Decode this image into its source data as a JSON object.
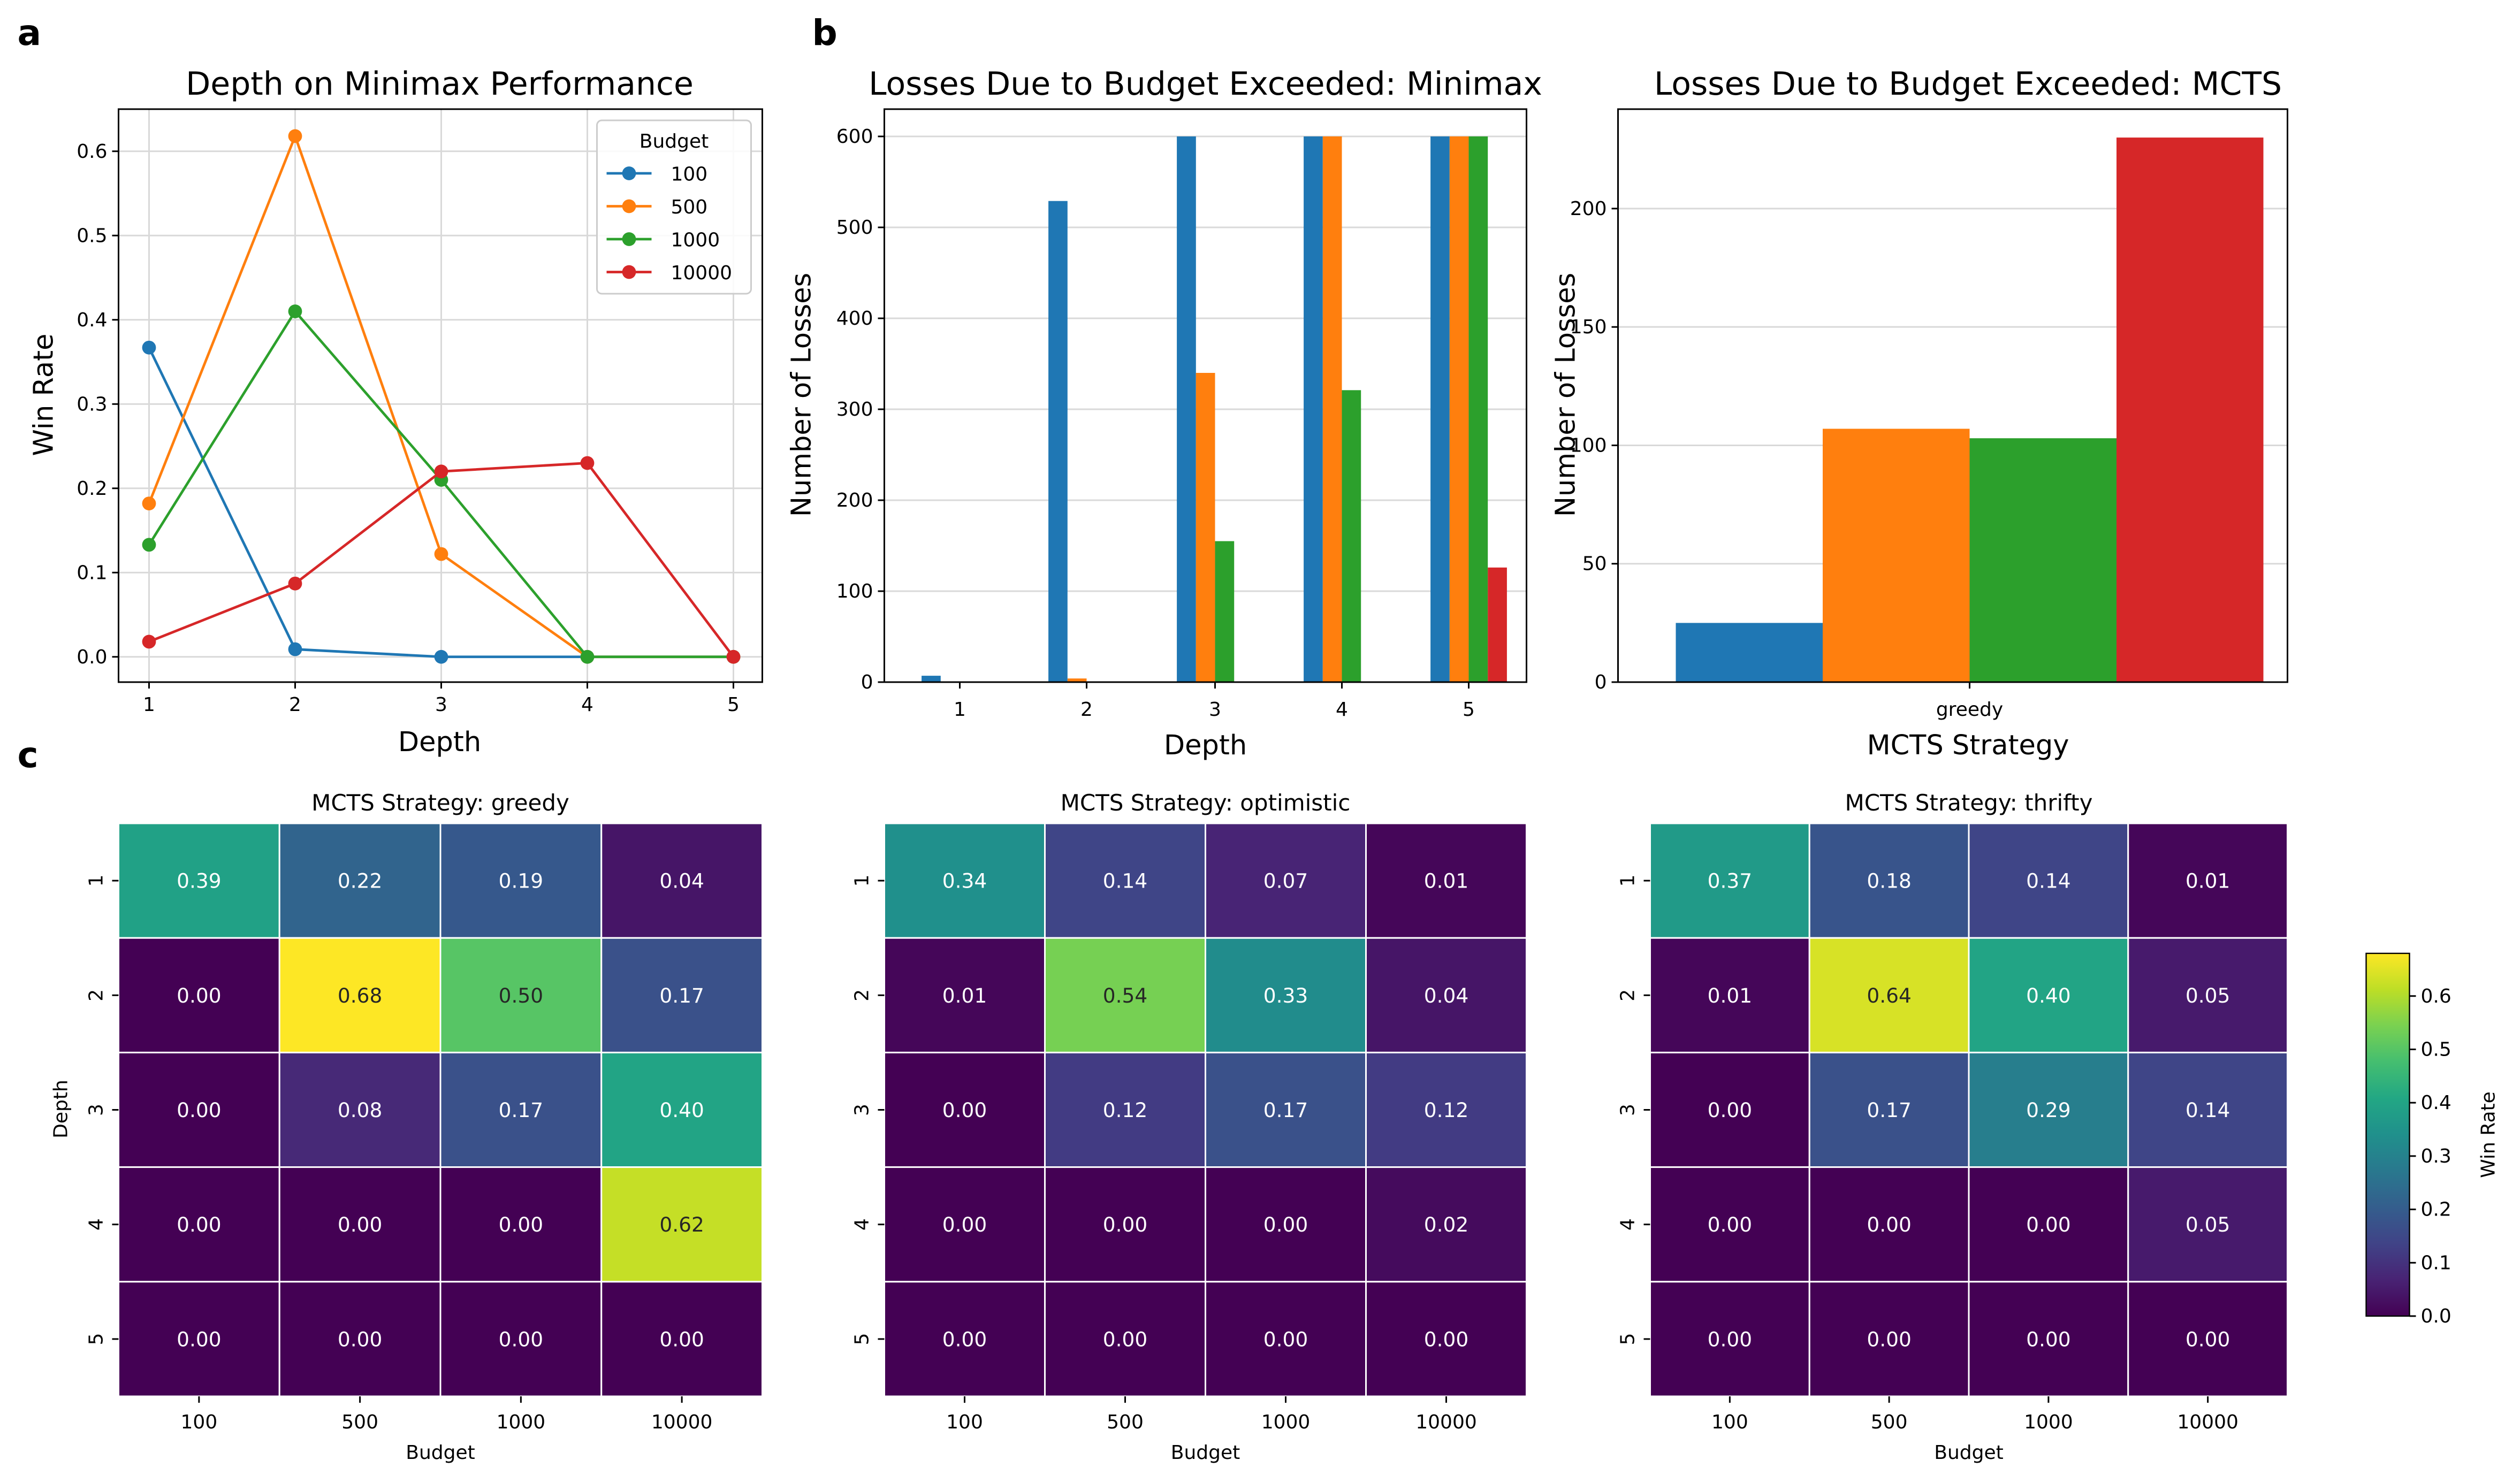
{
  "panels": {
    "a": "a",
    "b": "b",
    "c": "c"
  },
  "chart_data": [
    {
      "id": "a",
      "type": "line",
      "title": "Depth on Minimax Performance",
      "xlabel": "Depth",
      "ylabel": "Win Rate",
      "x": [
        1,
        2,
        3,
        4,
        5
      ],
      "xticks": [
        "1",
        "2",
        "3",
        "4",
        "5"
      ],
      "yticks": [
        "0.0",
        "0.1",
        "0.2",
        "0.3",
        "0.4",
        "0.5",
        "0.6"
      ],
      "ylim": [
        -0.03,
        0.65
      ],
      "grid": true,
      "legend": {
        "title": "Budget",
        "position": "top-right"
      },
      "series": [
        {
          "name": "100",
          "color": "#1f77b4",
          "values": [
            0.367,
            0.009,
            0.0,
            0.0,
            0.0
          ]
        },
        {
          "name": "500",
          "color": "#ff7f0e",
          "values": [
            0.182,
            0.618,
            0.122,
            0.0,
            0.0
          ]
        },
        {
          "name": "1000",
          "color": "#2ca02c",
          "values": [
            0.133,
            0.41,
            0.21,
            0.0,
            0.0
          ]
        },
        {
          "name": "10000",
          "color": "#d62728",
          "values": [
            0.018,
            0.087,
            0.22,
            0.23,
            0.0
          ]
        }
      ]
    },
    {
      "id": "b1",
      "type": "bar",
      "title": "Losses Due to Budget Exceeded: Minimax",
      "xlabel": "Depth",
      "ylabel": "Number of Losses",
      "categories": [
        "1",
        "2",
        "3",
        "4",
        "5"
      ],
      "yticks": [
        "0",
        "100",
        "200",
        "300",
        "400",
        "500",
        "600"
      ],
      "ylim": [
        0,
        630
      ],
      "grid": true,
      "series": [
        {
          "name": "100",
          "color": "#1f77b4",
          "values": [
            7,
            529,
            600,
            600,
            600
          ]
        },
        {
          "name": "500",
          "color": "#ff7f0e",
          "values": [
            0,
            4,
            340,
            600,
            600
          ]
        },
        {
          "name": "1000",
          "color": "#2ca02c",
          "values": [
            0,
            0,
            155,
            321,
            600
          ]
        },
        {
          "name": "10000",
          "color": "#d62728",
          "values": [
            0,
            0,
            0,
            0,
            126
          ]
        }
      ]
    },
    {
      "id": "b2",
      "type": "bar",
      "title": "Losses Due to Budget Exceeded: MCTS",
      "xlabel": "MCTS Strategy",
      "ylabel": "Number of Losses",
      "categories": [
        "greedy"
      ],
      "yticks": [
        "0",
        "50",
        "100",
        "150",
        "200"
      ],
      "ylim": [
        0,
        242
      ],
      "grid": true,
      "series": [
        {
          "name": "100",
          "color": "#1f77b4",
          "values": [
            25
          ]
        },
        {
          "name": "500",
          "color": "#ff7f0e",
          "values": [
            107
          ]
        },
        {
          "name": "1000",
          "color": "#2ca02c",
          "values": [
            103
          ]
        },
        {
          "name": "10000",
          "color": "#d62728",
          "values": [
            230
          ]
        }
      ]
    },
    {
      "id": "c",
      "type": "heatmap",
      "xlabel": "Budget",
      "ylabel": "Depth",
      "x": [
        "100",
        "500",
        "1000",
        "10000"
      ],
      "y": [
        "1",
        "2",
        "3",
        "4",
        "5"
      ],
      "colormap": "viridis",
      "vmin": 0.0,
      "vmax": 0.68,
      "colorbar": {
        "label": "Win Rate",
        "ticks": [
          "0.0",
          "0.1",
          "0.2",
          "0.3",
          "0.4",
          "0.5",
          "0.6"
        ]
      },
      "heatmaps": [
        {
          "title": "MCTS Strategy: greedy",
          "values": [
            [
              0.39,
              0.22,
              0.19,
              0.04
            ],
            [
              0.0,
              0.68,
              0.5,
              0.17
            ],
            [
              0.0,
              0.08,
              0.17,
              0.4
            ],
            [
              0.0,
              0.0,
              0.0,
              0.62
            ],
            [
              0.0,
              0.0,
              0.0,
              0.0
            ]
          ]
        },
        {
          "title": "MCTS Strategy: optimistic",
          "values": [
            [
              0.34,
              0.14,
              0.07,
              0.01
            ],
            [
              0.01,
              0.54,
              0.33,
              0.04
            ],
            [
              0.0,
              0.12,
              0.17,
              0.12
            ],
            [
              0.0,
              0.0,
              0.0,
              0.02
            ],
            [
              0.0,
              0.0,
              0.0,
              0.0
            ]
          ]
        },
        {
          "title": "MCTS Strategy: thrifty",
          "values": [
            [
              0.37,
              0.18,
              0.14,
              0.01
            ],
            [
              0.01,
              0.64,
              0.4,
              0.05
            ],
            [
              0.0,
              0.17,
              0.29,
              0.14
            ],
            [
              0.0,
              0.0,
              0.0,
              0.05
            ],
            [
              0.0,
              0.0,
              0.0,
              0.0
            ]
          ]
        }
      ]
    }
  ]
}
